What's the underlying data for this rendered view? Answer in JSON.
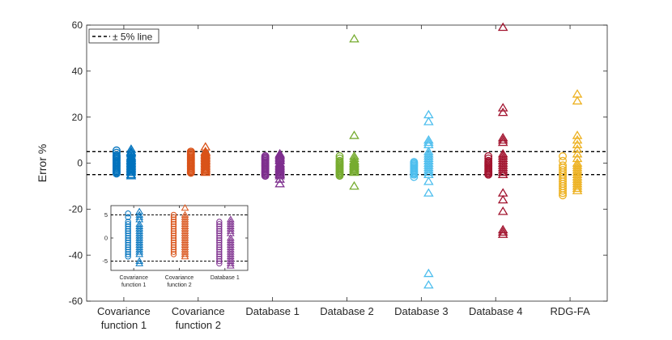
{
  "chart_data": [
    {
      "type": "scatter",
      "title": "",
      "xlabel": "",
      "ylabel": "Error %",
      "ylim": [
        -60,
        60
      ],
      "yticks": [
        60,
        40,
        20,
        0,
        -20,
        -40,
        -60
      ],
      "grid": false,
      "legend": {
        "position": "top-left",
        "entries": [
          {
            "label": "± 5% line",
            "style": "black dashed"
          }
        ]
      },
      "reference_lines": [
        5,
        -5
      ],
      "categories": [
        {
          "line1": "Covariance",
          "line2": "function 1"
        },
        {
          "line1": "Covariance",
          "line2": "function 2"
        },
        {
          "line1": "Database 1",
          "line2": ""
        },
        {
          "line1": "Database 2",
          "line2": ""
        },
        {
          "line1": "Database 3",
          "line2": ""
        },
        {
          "line1": "Database 4",
          "line2": ""
        },
        {
          "line1": "RDG-FA",
          "line2": ""
        }
      ],
      "series": [
        {
          "name": "Covariance function 1",
          "color": "#0072BD",
          "circles": [
            5.5,
            4.5,
            3.5,
            3,
            2.5,
            2,
            1.5,
            1,
            0.5,
            0,
            -0.5,
            -1,
            -1.5,
            -2,
            -2.5,
            -3,
            -3.5,
            -4,
            -4.5
          ],
          "triangles": [
            6,
            5,
            4.5,
            4,
            3,
            2.5,
            2,
            1.5,
            1,
            0.5,
            0,
            -0.5,
            -1,
            -1.5,
            -2,
            -2.5,
            -3,
            -3.5,
            -4,
            -5,
            -5.5
          ]
        },
        {
          "name": "Covariance function 2",
          "color": "#D95319",
          "circles": [
            5,
            4.5,
            4,
            3.5,
            3,
            2.5,
            2,
            1.5,
            1,
            0.5,
            0,
            -0.5,
            -1,
            -1.5,
            -2,
            -2.5,
            -3,
            -3.5,
            -4,
            -4.2
          ],
          "triangles": [
            7,
            5,
            4.5,
            4,
            3.5,
            3,
            2.5,
            2,
            1.5,
            1,
            0.5,
            0,
            -0.5,
            -1,
            -1.5,
            -2,
            -2.5,
            -3,
            -3.5,
            -4
          ]
        },
        {
          "name": "Database 1",
          "color": "#7E2F8E",
          "circles": [
            3,
            2.5,
            2,
            1.5,
            1,
            0.5,
            0,
            -0.5,
            -1,
            -1.5,
            -2,
            -2.5,
            -3,
            -3.5,
            -4,
            -4.5,
            -5,
            -5.5
          ],
          "triangles": [
            4,
            3.5,
            3,
            2.5,
            2,
            1.5,
            1,
            0,
            -0.5,
            -1,
            -1.5,
            -2,
            -2.5,
            -3,
            -3.5,
            -4,
            -4.5,
            -5,
            -5.5,
            -7,
            -9
          ]
        },
        {
          "name": "Database 2",
          "color": "#77AC30",
          "circles": [
            3,
            2,
            1,
            0.5,
            0,
            -0.5,
            -1,
            -1.5,
            -2,
            -2.5,
            -3,
            -3.5,
            -4,
            -4.5,
            -5,
            -5.5
          ],
          "triangles": [
            54,
            12,
            3,
            2,
            1,
            0.5,
            0,
            -0.5,
            -1,
            -1.5,
            -2,
            -2.5,
            -3,
            -3.5,
            -4,
            -10
          ]
        },
        {
          "name": "Database 3",
          "color": "#4DBEEE",
          "circles": [
            0.5,
            0,
            -0.5,
            -1,
            -1.5,
            -2,
            -2.5,
            -3,
            -3.5,
            -4,
            -4.5,
            -5,
            -6
          ],
          "triangles": [
            21,
            18,
            10,
            9,
            8,
            5,
            4,
            3,
            2,
            1,
            0,
            -1,
            -2,
            -3,
            -4,
            -5,
            -8,
            -13,
            -48,
            -53
          ]
        },
        {
          "name": "Database 4",
          "color": "#A2142F",
          "circles": [
            3,
            2,
            1,
            0.5,
            0,
            -0.5,
            -1,
            -1.5,
            -2,
            -2.5,
            -3,
            -3.5,
            -4,
            -4.5,
            -5
          ],
          "triangles": [
            59,
            24,
            22,
            11,
            10,
            9,
            4,
            3,
            2,
            1,
            0,
            -1,
            -2,
            -3,
            -4,
            -5,
            -13,
            -16,
            -21,
            -29,
            -30,
            -31
          ]
        },
        {
          "name": "RDG-FA",
          "color": "#EDB120",
          "circles": [
            3,
            1,
            -1,
            -2,
            -3,
            -4,
            -5,
            -6,
            -7,
            -8,
            -9,
            -10,
            -11,
            -12,
            -13,
            -14
          ],
          "triangles": [
            30,
            27,
            12,
            10,
            8,
            6,
            4,
            2,
            0,
            -1,
            -2,
            -3,
            -4,
            -5,
            -6,
            -7,
            -8,
            -9,
            -10,
            -11,
            -12
          ]
        }
      ]
    },
    {
      "type": "scatter",
      "role": "inset",
      "ylim": [
        -7,
        7
      ],
      "yticks": [
        5,
        0,
        -5
      ],
      "reference_lines": [
        5,
        -5
      ],
      "categories": [
        {
          "line1": "Covariance",
          "line2": "function 1"
        },
        {
          "line1": "Covariance",
          "line2": "function 2"
        },
        {
          "line1": "Database 1",
          "line2": ""
        }
      ],
      "series": [
        {
          "name": "Covariance function 1",
          "color": "#0072BD",
          "circles": [
            5.3,
            4.5,
            3.5,
            3,
            2.5,
            2,
            1.5,
            1,
            0.5,
            0,
            -0.5,
            -1,
            -1.5,
            -2,
            -2.5,
            -3,
            -3.5,
            -4
          ],
          "triangles": [
            5.7,
            5,
            4.5,
            4,
            3,
            2.5,
            2,
            1.5,
            1,
            0.5,
            0,
            -0.5,
            -1,
            -1.5,
            -2,
            -2.5,
            -3,
            -3.5,
            -5,
            -5.5
          ]
        },
        {
          "name": "Covariance function 2",
          "color": "#D95319",
          "circles": [
            5,
            4.5,
            4,
            3.5,
            3,
            2.5,
            2,
            1.5,
            1,
            0.5,
            0,
            -0.5,
            -1,
            -1.5,
            -2,
            -2.5,
            -3,
            -3.5
          ],
          "triangles": [
            6.5,
            5,
            4.5,
            4,
            3.5,
            3,
            2.5,
            2,
            1.5,
            1,
            0.5,
            0,
            -0.5,
            -1,
            -1.5,
            -2,
            -2.5,
            -3,
            -3.5,
            -4
          ]
        },
        {
          "name": "Database 1",
          "color": "#7E2F8E",
          "circles": [
            3.5,
            3,
            2.5,
            2,
            1.5,
            1,
            0.5,
            0,
            -0.5,
            -1,
            -1.5,
            -2,
            -2.5,
            -3,
            -3.5,
            -4,
            -4.5,
            -5,
            -5.5
          ],
          "triangles": [
            4,
            3.5,
            3,
            2.5,
            2,
            1.5,
            1,
            0,
            -0.5,
            -1,
            -1.5,
            -2,
            -2.5,
            -3,
            -3.5,
            -4,
            -4.5,
            -5,
            -5.5,
            -6
          ]
        }
      ]
    }
  ]
}
